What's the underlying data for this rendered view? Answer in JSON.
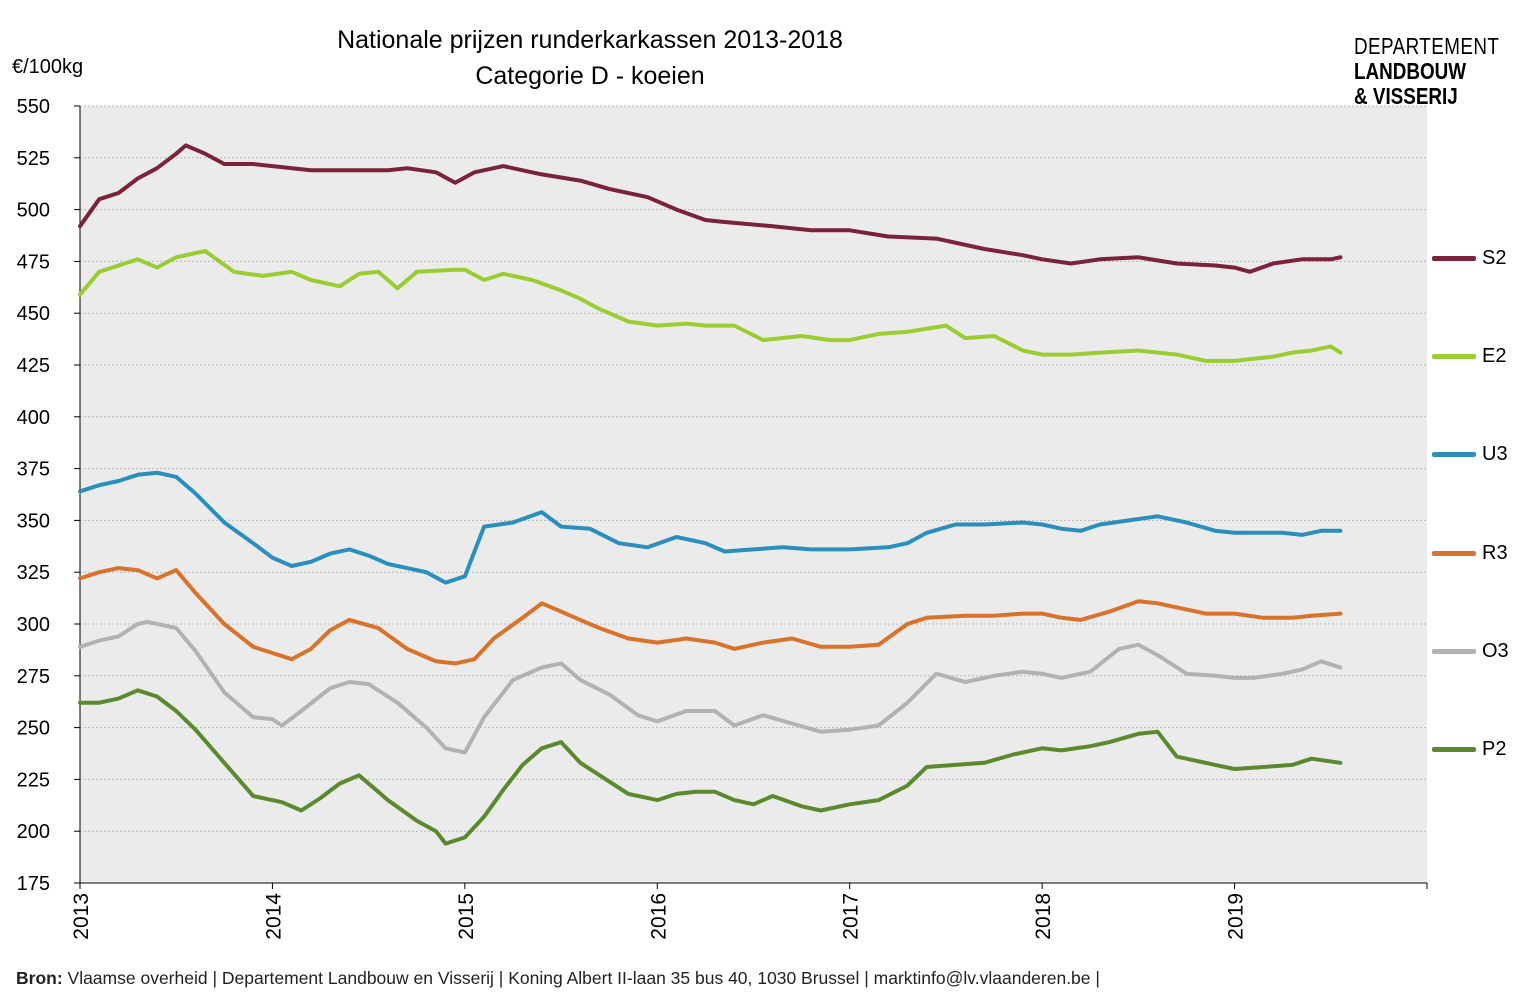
{
  "header": {
    "title_line1": "Nationale prijzen runderkarkassen 2013-2018",
    "title_line2": "Categorie D - koeien",
    "y_unit": "€/100kg"
  },
  "logo": {
    "line1": "DEPARTEMENT",
    "line2": "LANDBOUW",
    "line3": "& VISSERIJ"
  },
  "footer": {
    "source_label": "Bron:",
    "source_text": " Vlaamse overheid  |  Departement  Landbouw en Visserij  |  Koning Albert II-laan  35 bus 40, 1030 Brussel  |   marktinfo@lv.vlaanderen.be  |"
  },
  "chart_data": {
    "type": "line",
    "title": "Nationale prijzen runderkarkassen 2013-2018",
    "subtitle": "Categorie D - koeien",
    "ylabel": "€/100kg",
    "xlabel": "",
    "ylim": [
      175,
      550
    ],
    "yticks": [
      175,
      200,
      225,
      250,
      275,
      300,
      325,
      350,
      375,
      400,
      425,
      450,
      475,
      500,
      525,
      550
    ],
    "xlim": [
      2013,
      2020
    ],
    "xticks": [
      "2013",
      "2014",
      "2015",
      "2016",
      "2017",
      "2018",
      "2019"
    ],
    "grid": "horizontal",
    "background": "#ebebeb",
    "legend_position": "right",
    "series": [
      {
        "name": "S2",
        "color": "#7b2339",
        "x": [
          2013.0,
          2013.1,
          2013.2,
          2013.3,
          2013.4,
          2013.5,
          2013.55,
          2013.65,
          2013.75,
          2013.9,
          2014.0,
          2014.2,
          2014.4,
          2014.6,
          2014.7,
          2014.85,
          2014.95,
          2015.05,
          2015.2,
          2015.4,
          2015.6,
          2015.75,
          2015.95,
          2016.1,
          2016.25,
          2016.35,
          2016.6,
          2016.8,
          2017.0,
          2017.2,
          2017.45,
          2017.7,
          2017.9,
          2018.0,
          2018.15,
          2018.3,
          2018.5,
          2018.7,
          2018.9,
          2019.0,
          2019.08,
          2019.2,
          2019.35,
          2019.5,
          2019.55
        ],
        "y": [
          492,
          505,
          508,
          515,
          520,
          527,
          531,
          527,
          522,
          522,
          521,
          519,
          519,
          519,
          520,
          518,
          513,
          518,
          521,
          517,
          514,
          510,
          506,
          500,
          495,
          494,
          492,
          490,
          490,
          487,
          486,
          481,
          478,
          476,
          474,
          476,
          477,
          474,
          473,
          472,
          470,
          474,
          476,
          476,
          477
        ]
      },
      {
        "name": "E2",
        "color": "#9acd32",
        "x": [
          2013.0,
          2013.1,
          2013.2,
          2013.3,
          2013.4,
          2013.5,
          2013.65,
          2013.8,
          2013.95,
          2014.1,
          2014.2,
          2014.35,
          2014.45,
          2014.55,
          2014.65,
          2014.75,
          2014.95,
          2015.0,
          2015.1,
          2015.2,
          2015.35,
          2015.5,
          2015.6,
          2015.7,
          2015.85,
          2016.0,
          2016.15,
          2016.25,
          2016.4,
          2016.55,
          2016.75,
          2016.9,
          2017.0,
          2017.15,
          2017.3,
          2017.5,
          2017.6,
          2017.75,
          2017.9,
          2018.0,
          2018.15,
          2018.3,
          2018.5,
          2018.7,
          2018.85,
          2019.0,
          2019.1,
          2019.2,
          2019.3,
          2019.4,
          2019.5,
          2019.55
        ],
        "y": [
          459,
          470,
          473,
          476,
          472,
          477,
          480,
          470,
          468,
          470,
          466,
          463,
          469,
          470,
          462,
          470,
          471,
          471,
          466,
          469,
          466,
          461,
          457,
          452,
          446,
          444,
          445,
          444,
          444,
          437,
          439,
          437,
          437,
          440,
          441,
          444,
          438,
          439,
          432,
          430,
          430,
          431,
          432,
          430,
          427,
          427,
          428,
          429,
          431,
          432,
          434,
          431
        ]
      },
      {
        "name": "U3",
        "color": "#2b8fbe",
        "x": [
          2013.0,
          2013.1,
          2013.2,
          2013.3,
          2013.4,
          2013.5,
          2013.6,
          2013.75,
          2013.9,
          2014.0,
          2014.1,
          2014.2,
          2014.3,
          2014.4,
          2014.5,
          2014.6,
          2014.7,
          2014.8,
          2014.9,
          2015.0,
          2015.1,
          2015.25,
          2015.4,
          2015.5,
          2015.65,
          2015.8,
          2015.95,
          2016.1,
          2016.25,
          2016.35,
          2016.5,
          2016.65,
          2016.8,
          2017.0,
          2017.2,
          2017.3,
          2017.4,
          2017.55,
          2017.7,
          2017.9,
          2018.0,
          2018.1,
          2018.2,
          2018.3,
          2018.45,
          2018.6,
          2018.75,
          2018.9,
          2019.0,
          2019.1,
          2019.25,
          2019.35,
          2019.45,
          2019.55
        ],
        "y": [
          364,
          367,
          369,
          372,
          373,
          371,
          363,
          349,
          339,
          332,
          328,
          330,
          334,
          336,
          333,
          329,
          327,
          325,
          320,
          323,
          347,
          349,
          354,
          347,
          346,
          339,
          337,
          342,
          339,
          335,
          336,
          337,
          336,
          336,
          337,
          339,
          344,
          348,
          348,
          349,
          348,
          346,
          345,
          348,
          350,
          352,
          349,
          345,
          344,
          344,
          344,
          343,
          345,
          345
        ]
      },
      {
        "name": "R3",
        "color": "#d9722a",
        "x": [
          2013.0,
          2013.1,
          2013.2,
          2013.3,
          2013.4,
          2013.5,
          2013.6,
          2013.75,
          2013.9,
          2014.0,
          2014.1,
          2014.2,
          2014.3,
          2014.4,
          2014.55,
          2014.7,
          2014.85,
          2014.95,
          2015.05,
          2015.15,
          2015.3,
          2015.4,
          2015.5,
          2015.6,
          2015.7,
          2015.85,
          2016.0,
          2016.15,
          2016.3,
          2016.4,
          2016.55,
          2016.7,
          2016.85,
          2017.0,
          2017.15,
          2017.3,
          2017.4,
          2017.6,
          2017.75,
          2017.9,
          2018.0,
          2018.1,
          2018.2,
          2018.35,
          2018.5,
          2018.6,
          2018.7,
          2018.85,
          2019.0,
          2019.15,
          2019.3,
          2019.4,
          2019.55
        ],
        "y": [
          322,
          325,
          327,
          326,
          322,
          326,
          315,
          300,
          289,
          286,
          283,
          288,
          297,
          302,
          298,
          288,
          282,
          281,
          283,
          293,
          303,
          310,
          306,
          302,
          298,
          293,
          291,
          293,
          291,
          288,
          291,
          293,
          289,
          289,
          290,
          300,
          303,
          304,
          304,
          305,
          305,
          303,
          302,
          306,
          311,
          310,
          308,
          305,
          305,
          303,
          303,
          304,
          305
        ]
      },
      {
        "name": "O3",
        "color": "#b2b2b2",
        "x": [
          2013.0,
          2013.1,
          2013.2,
          2013.3,
          2013.35,
          2013.5,
          2013.6,
          2013.75,
          2013.9,
          2014.0,
          2014.05,
          2014.15,
          2014.3,
          2014.4,
          2014.5,
          2014.65,
          2014.8,
          2014.9,
          2015.0,
          2015.1,
          2015.25,
          2015.4,
          2015.5,
          2015.6,
          2015.75,
          2015.9,
          2016.0,
          2016.15,
          2016.3,
          2016.4,
          2016.55,
          2016.7,
          2016.85,
          2017.0,
          2017.15,
          2017.3,
          2017.45,
          2017.6,
          2017.75,
          2017.9,
          2018.0,
          2018.1,
          2018.25,
          2018.4,
          2018.5,
          2018.6,
          2018.75,
          2018.9,
          2019.0,
          2019.1,
          2019.25,
          2019.35,
          2019.45,
          2019.55
        ],
        "y": [
          289,
          292,
          294,
          300,
          301,
          298,
          287,
          267,
          255,
          254,
          251,
          258,
          269,
          272,
          271,
          262,
          250,
          240,
          238,
          255,
          273,
          279,
          281,
          273,
          266,
          256,
          253,
          258,
          258,
          251,
          256,
          252,
          248,
          249,
          251,
          262,
          276,
          272,
          275,
          277,
          276,
          274,
          277,
          288,
          290,
          285,
          276,
          275,
          274,
          274,
          276,
          278,
          282,
          279
        ]
      },
      {
        "name": "P2",
        "color": "#5b8a2e",
        "x": [
          2013.0,
          2013.1,
          2013.2,
          2013.3,
          2013.4,
          2013.5,
          2013.6,
          2013.75,
          2013.9,
          2014.05,
          2014.15,
          2014.25,
          2014.35,
          2014.45,
          2014.6,
          2014.75,
          2014.85,
          2014.9,
          2015.0,
          2015.1,
          2015.2,
          2015.3,
          2015.4,
          2015.5,
          2015.6,
          2015.7,
          2015.85,
          2016.0,
          2016.1,
          2016.2,
          2016.3,
          2016.4,
          2016.5,
          2016.6,
          2016.75,
          2016.85,
          2017.0,
          2017.15,
          2017.3,
          2017.4,
          2017.55,
          2017.7,
          2017.85,
          2018.0,
          2018.1,
          2018.25,
          2018.35,
          2018.5,
          2018.6,
          2018.7,
          2018.9,
          2019.0,
          2019.15,
          2019.3,
          2019.4,
          2019.55
        ],
        "y": [
          262,
          262,
          264,
          268,
          265,
          258,
          249,
          233,
          217,
          214,
          210,
          216,
          223,
          227,
          215,
          205,
          200,
          194,
          197,
          207,
          220,
          232,
          240,
          243,
          233,
          227,
          218,
          215,
          218,
          219,
          219,
          215,
          213,
          217,
          212,
          210,
          213,
          215,
          222,
          231,
          232,
          233,
          237,
          240,
          239,
          241,
          243,
          247,
          248,
          236,
          232,
          230,
          231,
          232,
          235,
          233
        ]
      }
    ]
  }
}
